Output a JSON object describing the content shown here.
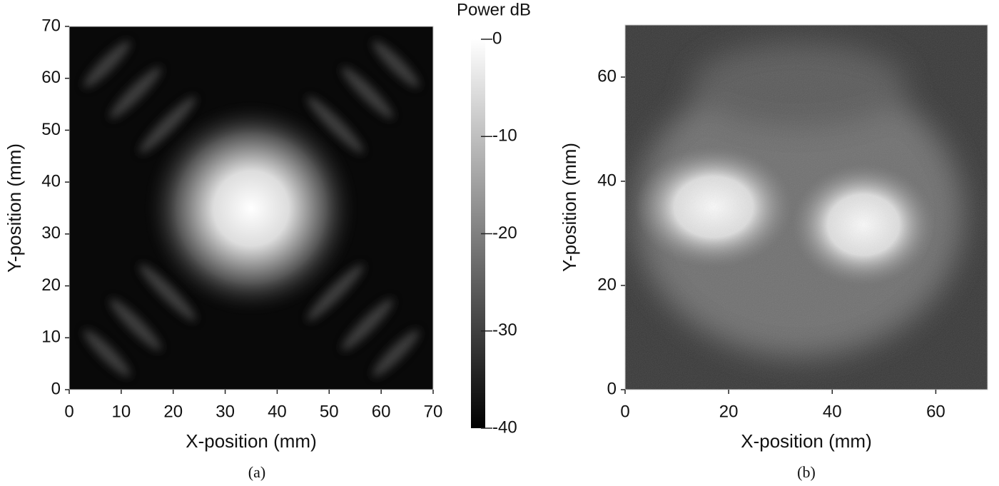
{
  "chart_data": [
    {
      "type": "heatmap",
      "caption": "(a)",
      "xlabel": "X-position (mm)",
      "ylabel": "Y-position (mm)",
      "xlim": [
        0,
        70
      ],
      "ylim": [
        0,
        70
      ],
      "xticks": [
        0,
        10,
        20,
        30,
        40,
        50,
        60,
        70
      ],
      "yticks": [
        0,
        10,
        20,
        30,
        40,
        50,
        60,
        70
      ],
      "colorbar": {
        "label": "Power dB",
        "lim": [
          -40,
          0
        ],
        "ticks": [
          0,
          -10,
          -20,
          -30,
          -40
        ]
      }
    },
    {
      "type": "heatmap",
      "caption": "(b)",
      "xlabel": "X-position (mm)",
      "ylabel": "Y-position (mm)",
      "xlim": [
        0,
        70
      ],
      "ylim": [
        0,
        70
      ],
      "xticks": [
        0,
        20,
        40,
        60
      ],
      "yticks": [
        0,
        20,
        40,
        60
      ]
    }
  ]
}
